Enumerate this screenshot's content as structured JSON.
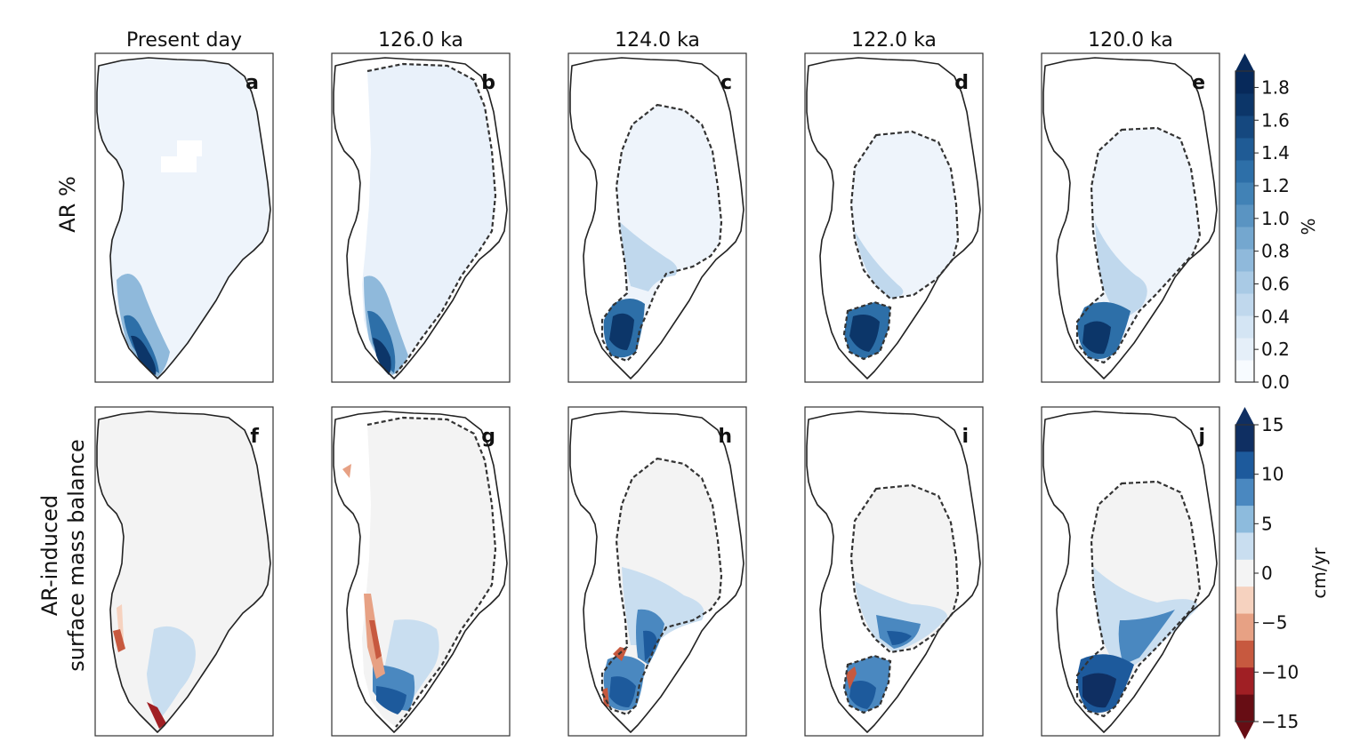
{
  "figure": {
    "column_titles": [
      "Present day",
      "126.0 ka",
      "124.0 ka",
      "122.0 ka",
      "120.0 ka"
    ],
    "row_labels": [
      "AR %",
      "AR-induced\nsurface mass balance"
    ],
    "panel_letters": [
      "a",
      "b",
      "c",
      "d",
      "e",
      "f",
      "g",
      "h",
      "i",
      "j"
    ]
  },
  "colorbars": [
    {
      "unit": "%",
      "ticks": [
        "0.0",
        "0.2",
        "0.4",
        "0.6",
        "0.8",
        "1.0",
        "1.2",
        "1.4",
        "1.6",
        "1.8"
      ],
      "min": 0.0,
      "max": 1.9,
      "colors": [
        "#f7fbff",
        "#e5eff9",
        "#d4e5f4",
        "#c0d8ed",
        "#a9cae5",
        "#8fb9db",
        "#74a7cf",
        "#5a94c2",
        "#4182b6",
        "#2d6fa8",
        "#1f5b95",
        "#15487f",
        "#0c3669",
        "#07295a"
      ]
    },
    {
      "unit": "cm/yr",
      "ticks": [
        "15",
        "10",
        "5",
        "0",
        "−5",
        "−10",
        "−15"
      ],
      "min": -15,
      "max": 15,
      "colors_top_to_bottom": [
        "#0f2f62",
        "#1d5a9c",
        "#4a88c0",
        "#8dbbdd",
        "#c9def0",
        "#f4f4f4",
        "#f6d2bf",
        "#e7a184",
        "#c7593f",
        "#a01f24",
        "#670d14"
      ]
    }
  ],
  "colors": {
    "ice_top_row": "#eef4fb",
    "ice_bottom_row": "#f3f3f3",
    "coastline": "#222222",
    "frame": "#333333"
  }
}
